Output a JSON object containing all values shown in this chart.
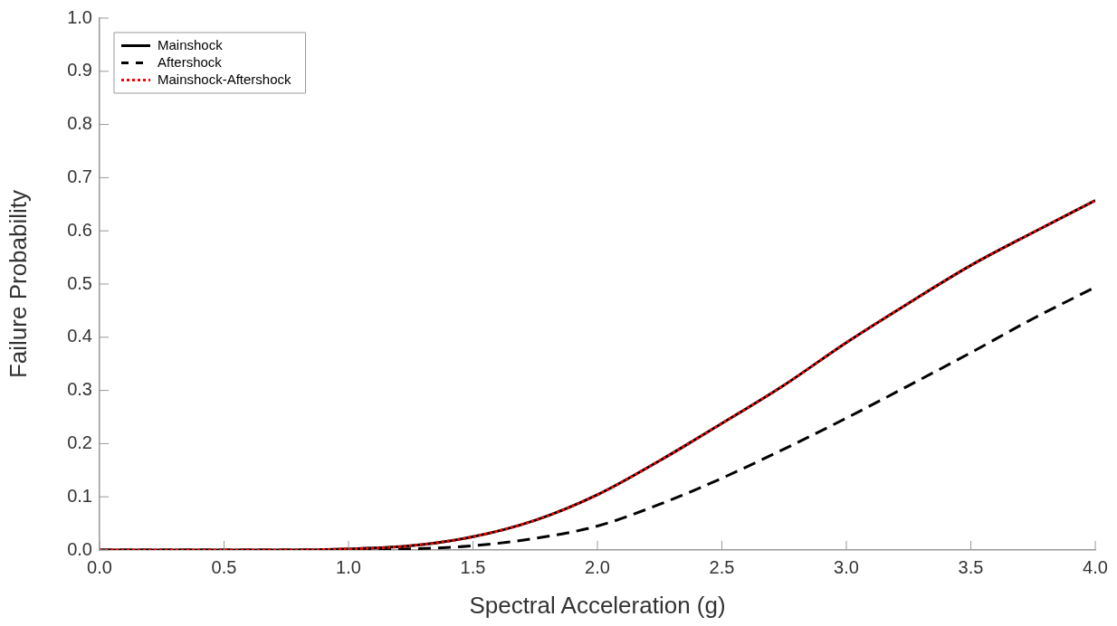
{
  "chart_data": {
    "type": "line",
    "xlabel": "Spectral Acceleration (g)",
    "ylabel": "Failure Probability",
    "x": [
      0,
      0.25,
      0.5,
      0.75,
      1.0,
      1.25,
      1.5,
      1.75,
      2.0,
      2.25,
      2.5,
      2.75,
      3.0,
      3.25,
      3.5,
      3.75,
      4.0
    ],
    "series": [
      {
        "name": "Mainshock",
        "color": "#000000",
        "line_style": "solid",
        "values": [
          0,
          0,
          0,
          0,
          0.002,
          0.008,
          0.025,
          0.056,
          0.104,
          0.168,
          0.238,
          0.31,
          0.39,
          0.464,
          0.535,
          0.597,
          0.657
        ]
      },
      {
        "name": "Aftershock",
        "color": "#000000",
        "line_style": "dashed",
        "values": [
          0,
          0,
          0,
          0,
          0,
          0.002,
          0.008,
          0.022,
          0.045,
          0.086,
          0.135,
          0.19,
          0.248,
          0.309,
          0.371,
          0.435,
          0.494
        ]
      },
      {
        "name": "Mainshock-Aftershock",
        "color": "#ff0000",
        "line_style": "dotted",
        "values": [
          0,
          0,
          0,
          0,
          0.002,
          0.008,
          0.025,
          0.056,
          0.104,
          0.168,
          0.238,
          0.31,
          0.39,
          0.464,
          0.535,
          0.597,
          0.657
        ]
      }
    ],
    "xlim": [
      0,
      4
    ],
    "xticks": [
      {
        "value": 0,
        "label": "0.0"
      },
      {
        "value": 0.5,
        "label": "0.5"
      },
      {
        "value": 1,
        "label": "1.0"
      },
      {
        "value": 1.5,
        "label": "1.5"
      },
      {
        "value": 2,
        "label": "2.0"
      },
      {
        "value": 2.5,
        "label": "2.5"
      },
      {
        "value": 3,
        "label": "3.0"
      },
      {
        "value": 3.5,
        "label": "3.5"
      },
      {
        "value": 4,
        "label": "4.0"
      }
    ],
    "ylim": [
      0,
      1
    ],
    "yticks": [
      {
        "value": 0,
        "label": "0.0"
      },
      {
        "value": 0.1,
        "label": "0.1"
      },
      {
        "value": 0.2,
        "label": "0.2"
      },
      {
        "value": 0.3,
        "label": "0.3"
      },
      {
        "value": 0.4,
        "label": "0.4"
      },
      {
        "value": 0.5,
        "label": "0.5"
      },
      {
        "value": 0.6,
        "label": "0.6"
      },
      {
        "value": 0.7,
        "label": "0.7"
      },
      {
        "value": 0.8,
        "label": "0.8"
      },
      {
        "value": 0.9,
        "label": "0.9"
      },
      {
        "value": 1,
        "label": "1.0"
      }
    ],
    "grid": false,
    "legend": "top left",
    "marker": "none"
  }
}
